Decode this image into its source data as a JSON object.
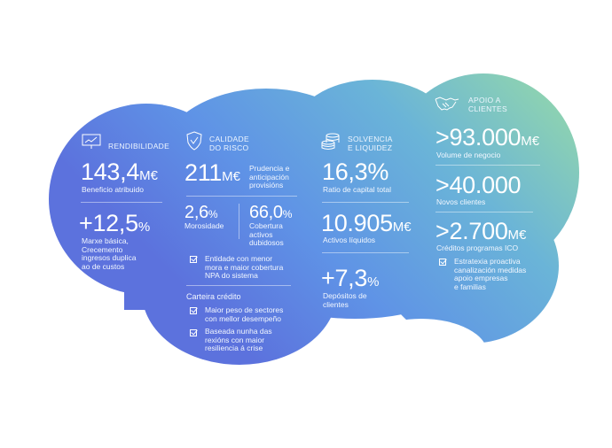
{
  "colors": {
    "gradient_top_right": "#8fd3ae",
    "gradient_left": "#5f97e8",
    "gradient_bottom": "#5a74de",
    "text": "#ffffff"
  },
  "rendibilidade": {
    "header": "RENDIBILIDADE",
    "icon": "chart-presentation-icon",
    "value1": "143,4",
    "unit1": "M€",
    "label1": "Beneficio atribuido",
    "value2": "+12,5",
    "unit2": "%",
    "label2": [
      "Marxe básica,",
      "Crecemento",
      "ingresos duplica",
      "ao de custos"
    ]
  },
  "calidade": {
    "header": [
      "CALIDADE",
      "DO RISCO"
    ],
    "icon": "shield-check-icon",
    "value1": "211",
    "unit1": "M€",
    "label1": [
      "Prudencia e",
      "anticipación",
      "provisións"
    ],
    "morosidade_value": "2,6",
    "morosidade_unit": "%",
    "morosidade_label": "Morosidade",
    "cobertura_value": "66,0",
    "cobertura_unit": "%",
    "cobertura_label": [
      "Cobertura",
      "activos",
      "dubidosos"
    ],
    "check1": [
      "Entidade con menor",
      "mora e maior cobertura",
      "NPA do sistema"
    ],
    "carteira_title": "Carteira crédito",
    "check2": [
      "Maior peso de sectores",
      "con mellor desempeño"
    ],
    "check3": [
      "Baseada nunha das",
      "rexións con maior",
      "resiliencia á crise"
    ]
  },
  "solvencia": {
    "header": [
      "SOLVENCIA",
      "E LIQUIDEZ"
    ],
    "icon": "coins-stack-icon",
    "value1": "16,3%",
    "label1": "Ratio de capital total",
    "value2": "10.905",
    "unit2": "M€",
    "label2": "Activos líquidos",
    "value3": "+7,3",
    "unit3": "%",
    "label3": [
      "Depósitos de",
      "clientes"
    ]
  },
  "apoio": {
    "header": [
      "APOIO A",
      "CLIENTES"
    ],
    "icon": "handshake-icon",
    "value1": ">93.000",
    "unit1": "M€",
    "label1": "Volume de negocio",
    "value2": ">40.000",
    "label2": "Novos clientes",
    "value3": ">2.700",
    "unit3": "M€",
    "label3": "Créditos programas ICO",
    "check1": [
      "Estratexia proactiva",
      "canalización medidas",
      "apoio empresas",
      "e familias"
    ]
  }
}
